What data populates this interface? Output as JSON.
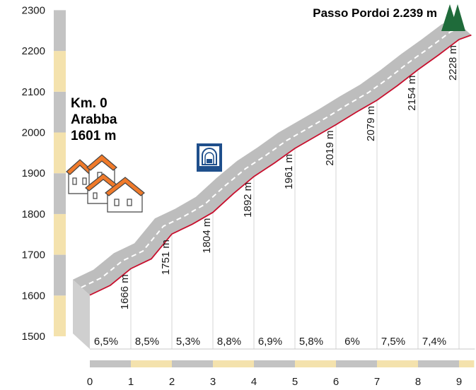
{
  "chart_data": {
    "type": "area",
    "title": "Passo Pordoi 2.239 m",
    "start_label": [
      "Km. 0",
      "Arabba",
      "1601 m"
    ],
    "ylim": [
      1500,
      2300
    ],
    "xlim": [
      0,
      9.3
    ],
    "y_ticks": [
      "1500",
      "1600",
      "1700",
      "1800",
      "1900",
      "2000",
      "2100",
      "2200",
      "2300"
    ],
    "x_ticks": [
      "0",
      "1",
      "2",
      "3",
      "4",
      "5",
      "6",
      "7",
      "8",
      "9"
    ],
    "profile": [
      {
        "km": 0,
        "alt": 1601
      },
      {
        "km": 0.5,
        "alt": 1625
      },
      {
        "km": 1,
        "alt": 1666
      },
      {
        "km": 1.5,
        "alt": 1690
      },
      {
        "km": 2,
        "alt": 1751
      },
      {
        "km": 2.5,
        "alt": 1775
      },
      {
        "km": 3,
        "alt": 1804
      },
      {
        "km": 3.5,
        "alt": 1850
      },
      {
        "km": 4,
        "alt": 1892
      },
      {
        "km": 4.5,
        "alt": 1925
      },
      {
        "km": 5,
        "alt": 1961
      },
      {
        "km": 5.5,
        "alt": 1990
      },
      {
        "km": 6,
        "alt": 2019
      },
      {
        "km": 6.5,
        "alt": 2050
      },
      {
        "km": 7,
        "alt": 2079
      },
      {
        "km": 7.5,
        "alt": 2115
      },
      {
        "km": 8,
        "alt": 2154
      },
      {
        "km": 8.5,
        "alt": 2190
      },
      {
        "km": 9,
        "alt": 2228
      },
      {
        "km": 9.3,
        "alt": 2239
      }
    ],
    "elevation_labels": [
      {
        "km": 1,
        "label": "1666 m"
      },
      {
        "km": 2,
        "label": "1751 m"
      },
      {
        "km": 3,
        "label": "1804 m"
      },
      {
        "km": 4,
        "label": "1892 m"
      },
      {
        "km": 5,
        "label": "1961 m"
      },
      {
        "km": 6,
        "label": "2019 m"
      },
      {
        "km": 7,
        "label": "2079 m"
      },
      {
        "km": 8,
        "label": "2154 m"
      },
      {
        "km": 9,
        "label": "2228 m"
      }
    ],
    "gradients": [
      "6,5%",
      "8,5%",
      "5,3%",
      "8,8%",
      "6,9%",
      "5,8%",
      "6%",
      "7,5%",
      "7,4%"
    ],
    "tunnel_km": 3,
    "colors": {
      "band_gray": "#c3c3c3",
      "band_cream": "#f4e2ad",
      "road": "#bdbdbd",
      "red_line": "#c8102e",
      "tree": "#1f6b3a",
      "tunnel_sign": "#1f4f8c",
      "roof": "#f07a2a"
    }
  }
}
